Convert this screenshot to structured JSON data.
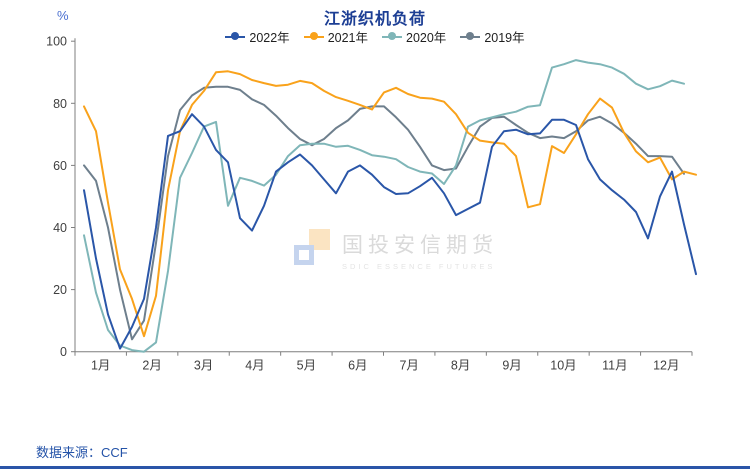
{
  "chart_data": {
    "type": "line",
    "title": "江浙织机负荷",
    "unit_label": "%",
    "ylim": [
      0,
      100
    ],
    "yticks": [
      0,
      20,
      40,
      60,
      80,
      100
    ],
    "x_months": [
      "1月",
      "2月",
      "3月",
      "4月",
      "5月",
      "6月",
      "7月",
      "8月",
      "9月",
      "10月",
      "11月",
      "12月"
    ],
    "grid": false,
    "legend_position": "top",
    "points_per_year": 52,
    "series": [
      {
        "name": "2022年",
        "color": "#2A56A8",
        "values": [
          52,
          30,
          12,
          1,
          8,
          17,
          40,
          69.5,
          71,
          76.5,
          72.5,
          65,
          61,
          43,
          39,
          47,
          58,
          61,
          63.5,
          60,
          55.5,
          51,
          58,
          60,
          57,
          53,
          50.8,
          51,
          53.3,
          56,
          51,
          44,
          46,
          48,
          66,
          71,
          71.5,
          70,
          70.3,
          74.7,
          74.7,
          73,
          62,
          55.5,
          52,
          49,
          45,
          36.5,
          50,
          58,
          41,
          25
        ]
      },
      {
        "name": "2021年",
        "color": "#F9A21B",
        "values": [
          79,
          71,
          48,
          26.5,
          17,
          5,
          18,
          52,
          71,
          79.5,
          84,
          90,
          90.3,
          89.4,
          87.5,
          86.5,
          85.6,
          86,
          87.2,
          86.5,
          84,
          82,
          80.8,
          79.5,
          78,
          83.5,
          85,
          83,
          81.8,
          81.5,
          80.5,
          76.5,
          70.5,
          68,
          67.4,
          67,
          63,
          46.5,
          47.5,
          66.2,
          64,
          70,
          76.5,
          81.5,
          78.6,
          70.5,
          64.5,
          61,
          62.5,
          55.5,
          58,
          57
        ]
      },
      {
        "name": "2020年",
        "color": "#7FB6B8",
        "values": [
          37.5,
          19,
          7,
          2,
          0.5,
          0,
          3,
          26,
          56,
          64,
          72.5,
          74,
          47,
          56,
          55,
          53.5,
          57,
          63,
          66.5,
          67,
          67,
          66,
          66.3,
          65,
          63.3,
          62.8,
          62,
          59.5,
          58,
          57.4,
          54,
          60,
          72.5,
          74.5,
          75.5,
          76.5,
          77.3,
          78.9,
          79.4,
          91.5,
          92.6,
          93.9,
          93.1,
          92.6,
          91.5,
          89.5,
          86.3,
          84.5,
          85.5,
          87.3,
          86.3,
          null
        ]
      },
      {
        "name": "2019年",
        "color": "#6E7F8D",
        "values": [
          60,
          55,
          40,
          20,
          4,
          10,
          35,
          63,
          77.8,
          82.5,
          85,
          85.3,
          85.3,
          84.3,
          81.3,
          79.5,
          76,
          72,
          68.5,
          66.5,
          68.5,
          72,
          74.5,
          78.2,
          79,
          79,
          75.5,
          71.5,
          66,
          60,
          58.5,
          59,
          66,
          72.5,
          75.3,
          75.7,
          73,
          70.5,
          68.8,
          69.3,
          68.8,
          71,
          74.5,
          75.7,
          73.5,
          70.5,
          67,
          63,
          63,
          62.8,
          57.3,
          null
        ]
      }
    ],
    "axis_color": "#7f7f7f",
    "tick_label_color": "#404040"
  },
  "watermark": {
    "cn": "国投安信期货",
    "en": "SDIC ESSENCE FUTURES"
  },
  "footer": {
    "source_text": "数据来源：CCF"
  }
}
